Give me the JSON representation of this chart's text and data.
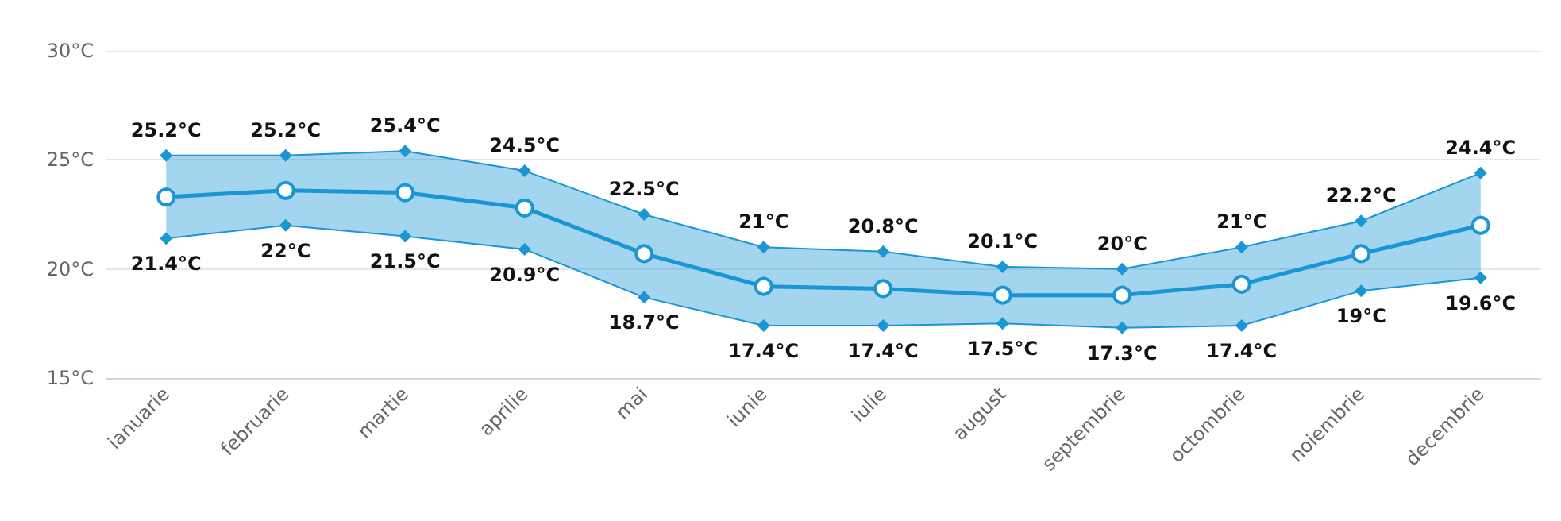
{
  "chart_data": {
    "type": "line",
    "categories": [
      "ianuarie",
      "februarie",
      "martie",
      "aprilie",
      "mai",
      "iunie",
      "iulie",
      "august",
      "septembrie",
      "octombrie",
      "noiembrie",
      "decembrie"
    ],
    "series": [
      {
        "color": "#1a96d4",
        "marker": "circle",
        "values": [
          23.3,
          23.6,
          23.5,
          22.8,
          20.7,
          19.2,
          19.1,
          18.8,
          18.8,
          19.3,
          20.7,
          22.0
        ],
        "lower": [
          21.4,
          22,
          21.5,
          20.9,
          18.7,
          17.4,
          17.4,
          17.5,
          17.3,
          17.4,
          19,
          19.6
        ],
        "upper": [
          25.2,
          25.2,
          25.4,
          24.5,
          22.5,
          21,
          20.8,
          20.1,
          20,
          21,
          22.2,
          24.4
        ]
      },
      {
        "color": "#1a96d4",
        "marker": "diamond",
        "values": [
          25.2,
          25.2,
          25.4,
          24.5,
          22.5,
          21,
          20.8,
          20.1,
          20,
          21,
          22.2,
          24.4
        ],
        "value_labels": [
          "25.2°C",
          "25.2°C",
          "25.4°C",
          "24.5°C",
          "22.5°C",
          "21°C",
          "20.8°C",
          "20.1°C",
          "20°C",
          "21°C",
          "22.2°C",
          "24.4°C"
        ]
      },
      {
        "color": "#1a96d4",
        "marker": "diamond",
        "values": [
          21.4,
          22,
          21.5,
          20.9,
          18.7,
          17.4,
          17.4,
          17.5,
          17.3,
          17.4,
          19,
          19.6
        ],
        "value_labels": [
          "21.4°C",
          "22°C",
          "21.5°C",
          "20.9°C",
          "18.7°C",
          "17.4°C",
          "17.4°C",
          "17.5°C",
          "17.3°C",
          "17.4°C",
          "19°C",
          "19.6°C"
        ]
      }
    ],
    "ylim": [
      15,
      30
    ],
    "yticks": [
      {
        "value": 15,
        "label": "15°C"
      },
      {
        "value": 20,
        "label": "20°C"
      },
      {
        "value": 25,
        "label": "25°C"
      },
      {
        "value": 30,
        "label": "30°C"
      }
    ],
    "grid": "y"
  }
}
